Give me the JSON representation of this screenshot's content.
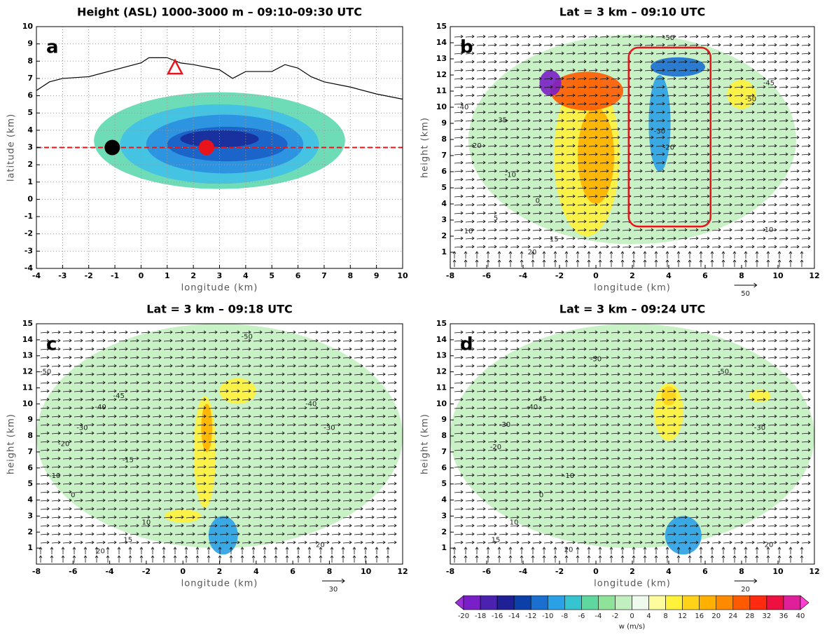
{
  "chart_data": [
    {
      "type": "map",
      "panel": "a",
      "title": "Height (ASL) 1000-3000 m – 09:10-09:30 UTC",
      "xlabel": "longitude (km)",
      "ylabel": "latitude (km)",
      "xlim": [
        -4,
        10
      ],
      "ylim": [
        -4,
        10
      ],
      "xticks": [
        -4,
        -3,
        -2,
        -1,
        0,
        1,
        2,
        3,
        4,
        5,
        6,
        7,
        8,
        9,
        10
      ],
      "yticks": [
        -4,
        -3,
        -2,
        -1,
        0,
        1,
        2,
        3,
        4,
        5,
        6,
        7,
        8,
        9,
        10
      ],
      "grid": true,
      "coast": {
        "color": "#000000",
        "x": [
          -4,
          -3.5,
          -3,
          -2,
          -1,
          0,
          0.3,
          1,
          1.5,
          2,
          3,
          3.5,
          4,
          5,
          5.5,
          6,
          6.5,
          7,
          8,
          9,
          10
        ],
        "y": [
          6.3,
          6.8,
          7,
          7.1,
          7.5,
          7.9,
          8.2,
          8.2,
          7.9,
          7.8,
          7.5,
          7.0,
          7.4,
          7.4,
          7.8,
          7.6,
          7.1,
          6.8,
          6.5,
          6.1,
          5.8
        ]
      },
      "regions": [
        {
          "x": 3,
          "y": 3.4,
          "rx": 4.8,
          "ry": 2.8,
          "color": "#5fd8b0"
        },
        {
          "x": 3,
          "y": 3.2,
          "rx": 3.8,
          "ry": 2.3,
          "color": "#40c0e8"
        },
        {
          "x": 3.2,
          "y": 3.2,
          "rx": 3,
          "ry": 1.7,
          "color": "#2a8fe0"
        },
        {
          "x": 3.3,
          "y": 3.2,
          "rx": 2.3,
          "ry": 1.0,
          "color": "#1a5fc8"
        },
        {
          "x": 3,
          "y": 3.5,
          "rx": 1.5,
          "ry": 0.5,
          "color": "#1a2a9a"
        }
      ],
      "hline": {
        "y": 3,
        "color": "#e8141c"
      },
      "markers": [
        {
          "x": -1.1,
          "y": 3,
          "shape": "circle",
          "color": "#000000"
        },
        {
          "x": 2.5,
          "y": 3,
          "shape": "circle",
          "color": "#e8141c"
        },
        {
          "x": 1.3,
          "y": 7.6,
          "shape": "triangle",
          "color": "#e8141c"
        }
      ]
    },
    {
      "type": "section",
      "panel": "b",
      "title": "Lat = 3 km – 09:10 UTC",
      "xlabel": "longitude (km)",
      "ylabel": "height (km)",
      "xlim": [
        -8,
        12
      ],
      "ylim": [
        0,
        15
      ],
      "xticks": [
        -8,
        -6,
        -4,
        -2,
        0,
        2,
        4,
        6,
        8,
        10,
        12
      ],
      "yticks": [
        1,
        2,
        3,
        4,
        5,
        6,
        7,
        8,
        9,
        10,
        11,
        12,
        13,
        14,
        15
      ],
      "ref_vector": 50,
      "regions": [
        {
          "x": 2,
          "y": 8,
          "rx": 9,
          "ry": 6.5,
          "w": -1
        },
        {
          "x": -0.5,
          "y": 7,
          "rx": 1.8,
          "ry": 5,
          "w": 10
        },
        {
          "x": 0,
          "y": 7,
          "rx": 1,
          "ry": 3,
          "w": 18
        },
        {
          "x": -0.5,
          "y": 11,
          "rx": 2,
          "ry": 1.2,
          "w": 26
        },
        {
          "x": -2.5,
          "y": 11.5,
          "rx": 0.6,
          "ry": 0.8,
          "w": -19
        },
        {
          "x": 3.5,
          "y": 9,
          "rx": 0.6,
          "ry": 3,
          "w": -9
        },
        {
          "x": 8,
          "y": 10.8,
          "rx": 0.8,
          "ry": 0.9,
          "w": 8
        },
        {
          "x": 4.5,
          "y": 12.5,
          "rx": 1.5,
          "ry": 0.6,
          "w": -11
        }
      ],
      "box": {
        "xlim": [
          1.8,
          6.3
        ],
        "ylim": [
          2.6,
          13.7
        ],
        "color": "#e8141c"
      },
      "labels": [
        {
          "x": 4,
          "y": 14.3,
          "value": -50
        },
        {
          "x": -7.3,
          "y": 10,
          "value": -40
        },
        {
          "x": -5.2,
          "y": 9.2,
          "value": -35
        },
        {
          "x": -6.6,
          "y": 7.6,
          "value": -20
        },
        {
          "x": -4.7,
          "y": 5.8,
          "value": -10
        },
        {
          "x": -3.2,
          "y": 4.2,
          "value": 0
        },
        {
          "x": -5.5,
          "y": 3.1,
          "value": 5
        },
        {
          "x": -7,
          "y": 2.3,
          "value": 10
        },
        {
          "x": -2.3,
          "y": 1.8,
          "value": 15
        },
        {
          "x": -3.5,
          "y": 1.0,
          "value": 20
        },
        {
          "x": 3.5,
          "y": 8.5,
          "value": -30
        },
        {
          "x": 4,
          "y": 7.5,
          "value": -20
        },
        {
          "x": 9.5,
          "y": 11.5,
          "value": -45
        },
        {
          "x": 8.5,
          "y": 10.5,
          "value": -50
        },
        {
          "x": 9.5,
          "y": 2.4,
          "value": 10
        }
      ]
    },
    {
      "type": "section",
      "panel": "c",
      "title": "Lat = 3 km – 09:18 UTC",
      "xlabel": "longitude (km)",
      "ylabel": "height (km)",
      "xlim": [
        -8,
        12
      ],
      "ylim": [
        0,
        15
      ],
      "xticks": [
        -8,
        -6,
        -4,
        -2,
        0,
        2,
        4,
        6,
        8,
        10,
        12
      ],
      "yticks": [
        1,
        2,
        3,
        4,
        5,
        6,
        7,
        8,
        9,
        10,
        11,
        12,
        13,
        14,
        15
      ],
      "ref_vector": 30,
      "regions": [
        {
          "x": 2,
          "y": 8,
          "rx": 10,
          "ry": 7,
          "w": -1
        },
        {
          "x": 1.2,
          "y": 7,
          "rx": 0.6,
          "ry": 3.5,
          "w": 10
        },
        {
          "x": 1.3,
          "y": 8.5,
          "rx": 0.3,
          "ry": 1.5,
          "w": 18
        },
        {
          "x": 2.2,
          "y": 1.8,
          "rx": 0.8,
          "ry": 1.2,
          "w": -10
        },
        {
          "x": 3,
          "y": 10.8,
          "rx": 1,
          "ry": 0.8,
          "w": 9
        },
        {
          "x": 0,
          "y": 3,
          "rx": 1,
          "ry": 0.4,
          "w": 9
        }
      ],
      "labels": [
        {
          "x": 3.5,
          "y": 14.2,
          "value": -50
        },
        {
          "x": -7.5,
          "y": 12,
          "value": -50
        },
        {
          "x": -3.5,
          "y": 10.5,
          "value": -45
        },
        {
          "x": -4.5,
          "y": 9.8,
          "value": -40
        },
        {
          "x": -5.5,
          "y": 8.5,
          "value": -30
        },
        {
          "x": -6.5,
          "y": 7.5,
          "value": -20
        },
        {
          "x": -3,
          "y": 6.5,
          "value": -15
        },
        {
          "x": -7,
          "y": 5.5,
          "value": -10
        },
        {
          "x": -6,
          "y": 4.3,
          "value": 0
        },
        {
          "x": -2,
          "y": 2.6,
          "value": 10
        },
        {
          "x": -3,
          "y": 1.5,
          "value": 15
        },
        {
          "x": -4.5,
          "y": 0.8,
          "value": 20
        },
        {
          "x": 7,
          "y": 10,
          "value": -40
        },
        {
          "x": 8,
          "y": 8.5,
          "value": -30
        },
        {
          "x": 7.5,
          "y": 1.2,
          "value": 20
        }
      ]
    },
    {
      "type": "section",
      "panel": "d",
      "title": "Lat = 3 km – 09:24 UTC",
      "xlabel": "longitude (km)",
      "ylabel": "height (km)",
      "xlim": [
        -8,
        12
      ],
      "ylim": [
        0,
        15
      ],
      "xticks": [
        -8,
        -6,
        -4,
        -2,
        0,
        2,
        4,
        6,
        8,
        10,
        12
      ],
      "yticks": [
        1,
        2,
        3,
        4,
        5,
        6,
        7,
        8,
        9,
        10,
        11,
        12,
        13,
        14,
        15
      ],
      "ref_vector": 20,
      "regions": [
        {
          "x": 2,
          "y": 8,
          "rx": 10,
          "ry": 7,
          "w": -1
        },
        {
          "x": 4,
          "y": 9.5,
          "rx": 0.8,
          "ry": 1.8,
          "w": 9
        },
        {
          "x": 4,
          "y": 10.5,
          "rx": 0.4,
          "ry": 0.6,
          "w": 14
        },
        {
          "x": 4.8,
          "y": 1.8,
          "rx": 1,
          "ry": 1.2,
          "w": -9
        },
        {
          "x": 9,
          "y": 10.5,
          "rx": 0.6,
          "ry": 0.4,
          "w": 9
        }
      ],
      "labels": [
        {
          "x": 0,
          "y": 12.8,
          "value": -50
        },
        {
          "x": 7,
          "y": 12,
          "value": -50
        },
        {
          "x": -3,
          "y": 10.3,
          "value": -45
        },
        {
          "x": -3.5,
          "y": 9.8,
          "value": -40
        },
        {
          "x": -5,
          "y": 8.7,
          "value": -30
        },
        {
          "x": -5.5,
          "y": 7.3,
          "value": -20
        },
        {
          "x": -1.5,
          "y": 5.5,
          "value": -10
        },
        {
          "x": -3,
          "y": 4.3,
          "value": 0
        },
        {
          "x": -4.5,
          "y": 2.6,
          "value": 10
        },
        {
          "x": -5.5,
          "y": 1.5,
          "value": 15
        },
        {
          "x": -1.5,
          "y": 0.9,
          "value": 20
        },
        {
          "x": 9,
          "y": 8.5,
          "value": -30
        },
        {
          "x": 9.5,
          "y": 1.2,
          "value": 20
        }
      ]
    },
    {
      "type": "colorbar",
      "label": "w (m/s)",
      "ticks": [
        -20,
        -18,
        -16,
        -14,
        -12,
        -10,
        -8,
        -6,
        -4,
        -2,
        0,
        4,
        8,
        12,
        16,
        20,
        24,
        28,
        32,
        36,
        40
      ],
      "colors": [
        "#9b30d9",
        "#7a1fc7",
        "#4b21b0",
        "#1f1f96",
        "#0d3fa8",
        "#1a6fd0",
        "#2aa0e6",
        "#35c4d0",
        "#5fd8a0",
        "#8fe29a",
        "#c2efbf",
        "#eefaee",
        "#fffc9e",
        "#fff23a",
        "#ffd21a",
        "#ffb000",
        "#ff8a00",
        "#ff5a00",
        "#ff2a10",
        "#ee1040",
        "#e0209a",
        "#ff40d0"
      ]
    }
  ]
}
